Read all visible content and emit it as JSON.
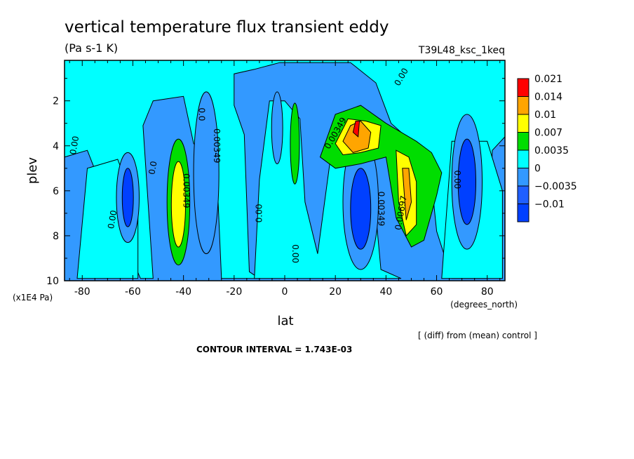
{
  "chart_data": {
    "type": "heatmap",
    "title": "vertical temperature flux transient eddy",
    "units": "(Pa s-1 K)",
    "run_id": "T39L48_ksc_1keq",
    "xlabel": "lat",
    "x_units": "(degrees_north)",
    "ylabel": "plev",
    "y_units": "(x1E4 Pa)",
    "xlim": [
      -87,
      87
    ],
    "ylim": [
      10,
      0.2
    ],
    "x_ticks": [
      "-80",
      "-60",
      "-40",
      "-20",
      "0",
      "20",
      "40",
      "60",
      "80"
    ],
    "x_tick_values": [
      -80,
      -60,
      -40,
      -20,
      0,
      20,
      40,
      60,
      80
    ],
    "y_ticks": [
      "2",
      "4",
      "6",
      "8",
      "10"
    ],
    "y_tick_values": [
      2,
      4,
      6,
      8,
      10
    ],
    "note": "[ (diff) from (mean) control ]",
    "contour_interval": "CONTOUR INTERVAL = 1.743E-03",
    "legend": {
      "levels": [
        "0.021",
        "0.014",
        "0.01",
        "0.007",
        "0.0035",
        "0",
        "−0.0035",
        "−0.01"
      ],
      "colors": [
        "#ff0000",
        "#ffa500",
        "#ffff00",
        "#00dd00",
        "#00ffff",
        "#3399ff",
        "#1f5fff",
        "#0040ff"
      ]
    },
    "features": [
      {
        "lat": -62,
        "plev": 6.3,
        "value": -0.005
      },
      {
        "lat": -42,
        "plev": 6.5,
        "value": 0.008
      },
      {
        "lat": -31,
        "plev": 5.2,
        "value": -0.003
      },
      {
        "lat": -3,
        "plev": 3.2,
        "value": -0.003
      },
      {
        "lat": 4,
        "plev": 4,
        "value": 0.004
      },
      {
        "lat": 28,
        "plev": 3.5,
        "value": 0.021
      },
      {
        "lat": 30,
        "plev": 6.5,
        "value": -0.005
      },
      {
        "lat": 48,
        "plev": 5.7,
        "value": 0.011
      },
      {
        "lat": 72,
        "plev": 5.6,
        "value": -0.004
      }
    ],
    "contour_labels": [
      {
        "text": "0.00",
        "lat": -82,
        "plev": 4.0,
        "rot": -80
      },
      {
        "text": "0.00",
        "lat": -67,
        "plev": 7.3,
        "rot": -80
      },
      {
        "text": "0.0",
        "lat": -51,
        "plev": 5.0,
        "rot": -80
      },
      {
        "text": "0.00349",
        "lat": -40,
        "plev": 6.0,
        "rot": 90
      },
      {
        "text": "0.0",
        "lat": -34,
        "plev": 2.6,
        "rot": 90
      },
      {
        "text": "0.00349",
        "lat": -28,
        "plev": 4.0,
        "rot": 90
      },
      {
        "text": "0.00",
        "lat": -9,
        "plev": 7.0,
        "rot": -90
      },
      {
        "text": "0.00",
        "lat": 3,
        "plev": 8.8,
        "rot": 90
      },
      {
        "text": "0.00349",
        "lat": 21,
        "plev": 3.5,
        "rot": -60
      },
      {
        "text": "0.00",
        "lat": 47,
        "plev": 1.0,
        "rot": -60
      },
      {
        "text": "0.00349",
        "lat": 37,
        "plev": 6.8,
        "rot": 90
      },
      {
        "text": "0.00697",
        "lat": 47,
        "plev": 7.0,
        "rot": -80
      },
      {
        "text": "0.00",
        "lat": 67,
        "plev": 5.5,
        "rot": 90
      }
    ]
  }
}
